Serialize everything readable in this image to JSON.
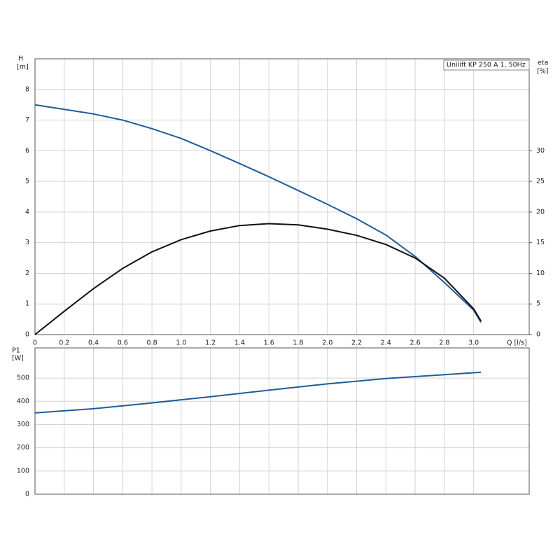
{
  "chart_data": [
    {
      "type": "line",
      "legend_text": "Unilift KP 250 A 1, 50Hz",
      "y_label": "H",
      "y_unit": "[m]",
      "y2_label": "eta",
      "y2_unit": "[%]",
      "x_label": "Q [l/s]",
      "x": [
        0,
        0.2,
        0.4,
        0.6,
        0.8,
        1.0,
        1.2,
        1.4,
        1.6,
        1.8,
        2.0,
        2.2,
        2.4,
        2.6,
        2.8,
        3.0,
        3.05
      ],
      "series": [
        {
          "name": "H",
          "color": "#1f5c99",
          "values": [
            7.5,
            7.35,
            7.2,
            7.0,
            6.72,
            6.4,
            6.0,
            5.58,
            5.15,
            4.7,
            4.25,
            3.78,
            3.25,
            2.55,
            1.7,
            0.8,
            0.4
          ]
        },
        {
          "name": "eta",
          "color": "#111111",
          "axis": "y2",
          "values": [
            0,
            3.8,
            7.5,
            10.8,
            13.5,
            15.5,
            16.9,
            17.8,
            18.1,
            17.9,
            17.2,
            16.2,
            14.7,
            12.5,
            9.2,
            4.2,
            2.2
          ]
        }
      ],
      "xlim": [
        0,
        3.38
      ],
      "xticks": [
        0,
        0.2,
        0.4,
        0.6,
        0.8,
        {
          "value": 1.0,
          "label": "1.0"
        },
        1.2,
        1.4,
        1.6,
        1.8,
        {
          "value": 2.0,
          "label": "2.0"
        },
        2.2,
        2.4,
        2.6,
        2.8,
        {
          "value": 3.0,
          "label": "3.0"
        }
      ],
      "ylim": [
        0,
        9
      ],
      "yticks": [
        0,
        1,
        2,
        3,
        4,
        5,
        6,
        7,
        8
      ],
      "y2lim": [
        0,
        45
      ],
      "y2ticks": [
        0,
        5,
        10,
        15,
        20,
        25,
        30
      ],
      "grid": true
    },
    {
      "type": "line",
      "y_label": "P1",
      "y_unit": "[W]",
      "x": [
        0,
        0.4,
        0.8,
        1.2,
        1.6,
        2.0,
        2.4,
        2.8,
        3.05
      ],
      "series": [
        {
          "name": "P1",
          "color": "#1f5c99",
          "values": [
            350,
            368,
            393,
            420,
            448,
            475,
            498,
            515,
            525
          ]
        }
      ],
      "xlim": [
        0,
        3.38
      ],
      "gridx": [
        0,
        0.2,
        0.4,
        0.6,
        0.8,
        1.0,
        1.2,
        1.4,
        1.6,
        1.8,
        2.0,
        2.2,
        2.4,
        2.6,
        2.8,
        3.0
      ],
      "ylim": [
        0,
        630
      ],
      "yticks": [
        0,
        100,
        200,
        300,
        400,
        500
      ],
      "grid": true
    }
  ]
}
